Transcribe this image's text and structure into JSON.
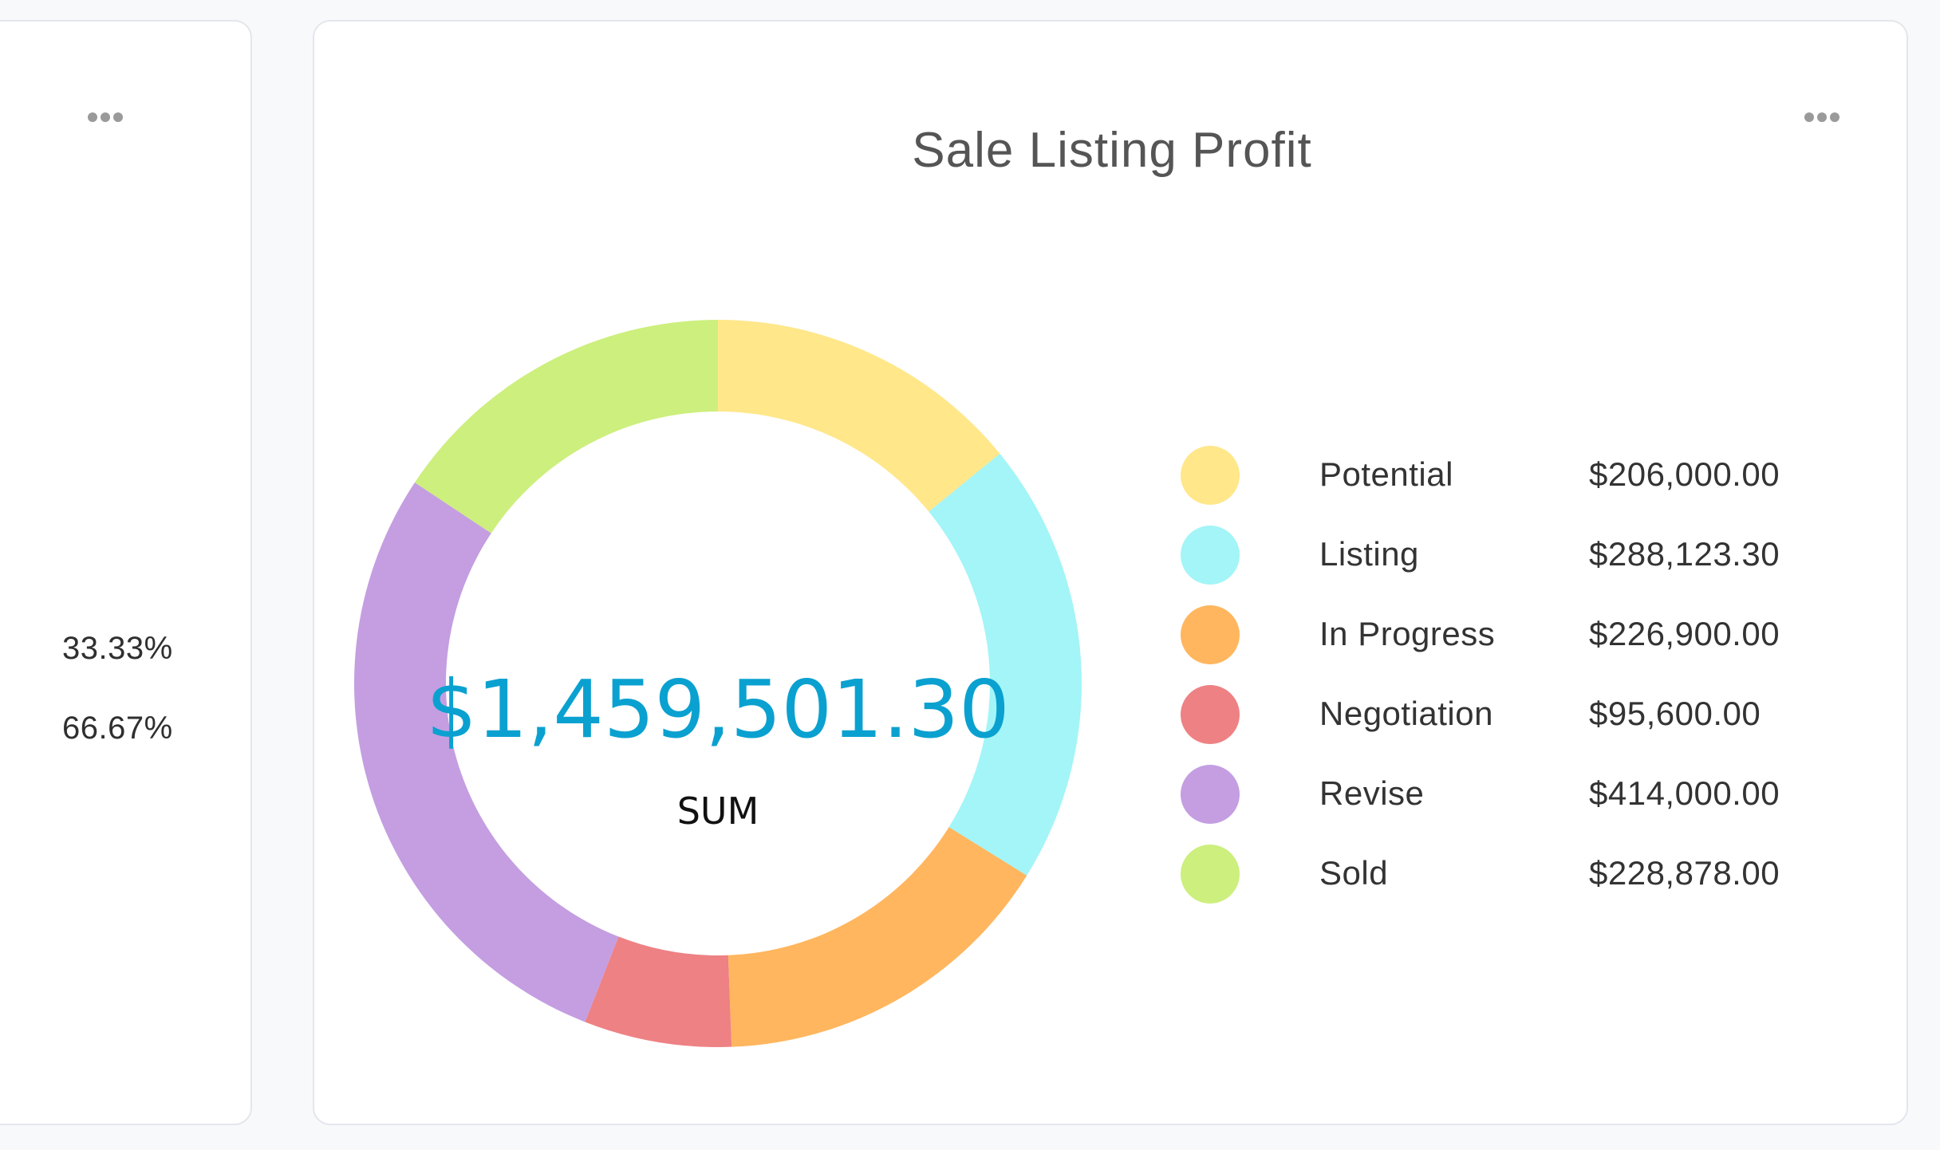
{
  "left_card": {
    "more_icon": "more-horizontal-icon",
    "percentages": [
      "33.33%",
      "66.67%"
    ]
  },
  "right_card": {
    "more_icon": "more-horizontal-icon"
  },
  "chart_data": {
    "type": "pie",
    "variant": "donut",
    "title": "Sale Listing Profit",
    "center_value": "$1,459,501.30",
    "center_label": "SUM",
    "legend_position": "right",
    "labels": [
      "Potential",
      "Listing",
      "In Progress",
      "Negotiation",
      "Revise",
      "Sold"
    ],
    "values": [
      206000.0,
      288123.3,
      226900.0,
      95600.0,
      414000.0,
      228878.0
    ],
    "value_labels": [
      "$206,000.00",
      "$288,123.30",
      "$226,900.00",
      "$95,600.00",
      "$414,000.00",
      "$228,878.00"
    ],
    "colors": [
      "#FFE78A",
      "#A3F5F7",
      "#FFB65E",
      "#EE8184",
      "#C49EE1",
      "#CDEF7E"
    ]
  },
  "colors": {
    "page_bg": "#f8f9fb",
    "card_border": "#e4e6ed",
    "sum_text": "#0aa1d0",
    "title_text": "#555555"
  }
}
